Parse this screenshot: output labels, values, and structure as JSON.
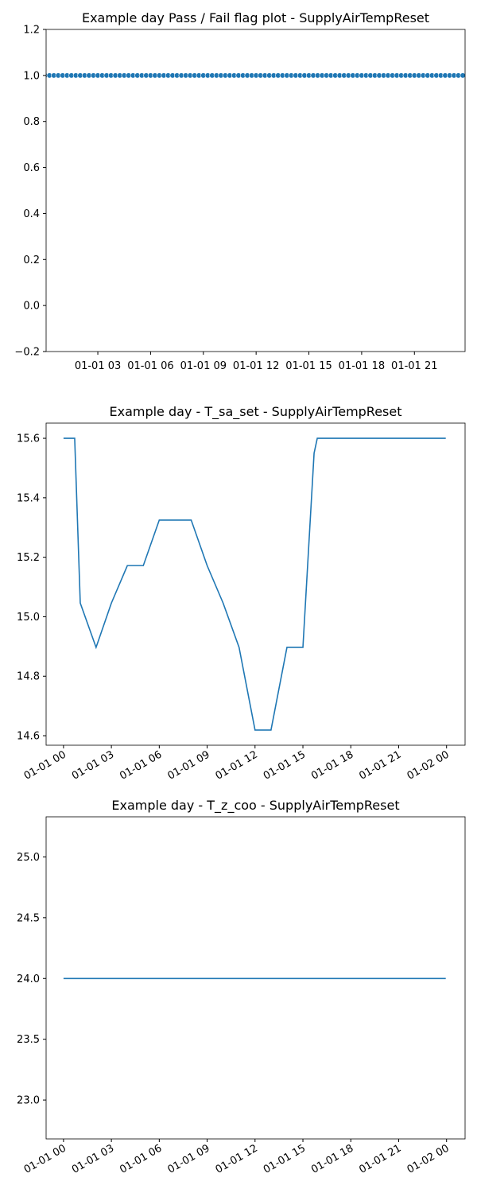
{
  "chart_data": [
    {
      "type": "scatter",
      "title": "Example day Pass / Fail flag plot - SupplyAirTempReset",
      "color": "#1f77b4",
      "x": [
        0,
        0.25,
        0.5,
        0.75,
        1,
        1.25,
        1.5,
        1.75,
        2,
        2.25,
        2.5,
        2.75,
        3,
        3.25,
        3.5,
        3.75,
        4,
        4.25,
        4.5,
        4.75,
        5,
        5.25,
        5.5,
        5.75,
        6,
        6.25,
        6.5,
        6.75,
        7,
        7.25,
        7.5,
        7.75,
        8,
        8.25,
        8.5,
        8.75,
        9,
        9.25,
        9.5,
        9.75,
        10,
        10.25,
        10.5,
        10.75,
        11,
        11.25,
        11.5,
        11.75,
        12,
        12.25,
        12.5,
        12.75,
        13,
        13.25,
        13.5,
        13.75,
        14,
        14.25,
        14.5,
        14.75,
        15,
        15.25,
        15.5,
        15.75,
        16,
        16.25,
        16.5,
        16.75,
        17,
        17.25,
        17.5,
        17.75,
        18,
        18.25,
        18.5,
        18.75,
        19,
        19.25,
        19.5,
        19.75,
        20,
        20.25,
        20.5,
        20.75,
        21,
        21.25,
        21.5,
        21.75,
        22,
        22.25,
        22.5,
        22.75,
        23,
        23.25,
        23.5,
        23.75
      ],
      "values": [
        1,
        1,
        1,
        1,
        1,
        1,
        1,
        1,
        1,
        1,
        1,
        1,
        1,
        1,
        1,
        1,
        1,
        1,
        1,
        1,
        1,
        1,
        1,
        1,
        1,
        1,
        1,
        1,
        1,
        1,
        1,
        1,
        1,
        1,
        1,
        1,
        1,
        1,
        1,
        1,
        1,
        1,
        1,
        1,
        1,
        1,
        1,
        1,
        1,
        1,
        1,
        1,
        1,
        1,
        1,
        1,
        1,
        1,
        1,
        1,
        1,
        1,
        1,
        1,
        1,
        1,
        1,
        1,
        1,
        1,
        1,
        1,
        1,
        1,
        1,
        1,
        1,
        1,
        1,
        1,
        1,
        1,
        1,
        1,
        1,
        1,
        1,
        1,
        1,
        1,
        1,
        1,
        1,
        1,
        1,
        1
      ],
      "xlim": [
        0.06,
        23.88
      ],
      "xticks": [
        {
          "value": 3,
          "label": "01-01 03"
        },
        {
          "value": 6,
          "label": "01-01 06"
        },
        {
          "value": 9,
          "label": "01-01 09"
        },
        {
          "value": 12,
          "label": "01-01 12"
        },
        {
          "value": 15,
          "label": "01-01 15"
        },
        {
          "value": 18,
          "label": "01-01 18"
        },
        {
          "value": 21,
          "label": "01-01 21"
        }
      ],
      "ylim": [
        -0.2,
        1.2
      ],
      "yticks": [
        {
          "value": -0.2,
          "label": "−0.2"
        },
        {
          "value": 0,
          "label": "0.0"
        },
        0.2,
        0.4,
        0.6,
        0.8,
        {
          "value": 1,
          "label": "1.0"
        },
        1.2
      ]
    },
    {
      "type": "line",
      "title": "Example day - T_sa_set - SupplyAirTempReset",
      "color": "#1f77b4",
      "x": [
        0,
        0.7,
        1.05,
        2.04,
        3,
        4,
        5,
        6,
        8,
        9,
        10,
        11,
        12,
        13,
        14,
        15,
        15.7,
        15.9,
        23.95
      ],
      "values": [
        15.6,
        15.6,
        15.046,
        14.897,
        15.046,
        15.172,
        15.172,
        15.325,
        15.325,
        15.172,
        15.046,
        14.897,
        14.619,
        14.619,
        14.897,
        14.897,
        15.55,
        15.6,
        15.6
      ],
      "xlim": [
        -1.09,
        25.16
      ],
      "xticks": [
        {
          "value": 0,
          "label": "01-01 00"
        },
        {
          "value": 3,
          "label": "01-01 03"
        },
        {
          "value": 6,
          "label": "01-01 06"
        },
        {
          "value": 9,
          "label": "01-01 09"
        },
        {
          "value": 12,
          "label": "01-01 12"
        },
        {
          "value": 15,
          "label": "01-01 15"
        },
        {
          "value": 18,
          "label": "01-01 18"
        },
        {
          "value": 21,
          "label": "01-01 21"
        },
        {
          "value": 24,
          "label": "01-02 00"
        }
      ],
      "ylim": [
        14.568,
        15.651
      ],
      "yticks": [
        14.6,
        14.8,
        {
          "value": 15,
          "label": "15.0"
        },
        15.2,
        15.4,
        15.6
      ]
    },
    {
      "type": "line",
      "title": "Example day - T_z_coo - SupplyAirTempReset",
      "color": "#1f77b4",
      "x": [
        0,
        23.95
      ],
      "values": [
        24,
        24
      ],
      "xlim": [
        -1.09,
        25.16
      ],
      "xticks": [
        {
          "value": 0,
          "label": "01-01 00"
        },
        {
          "value": 3,
          "label": "01-01 03"
        },
        {
          "value": 6,
          "label": "01-01 06"
        },
        {
          "value": 9,
          "label": "01-01 09"
        },
        {
          "value": 12,
          "label": "01-01 12"
        },
        {
          "value": 15,
          "label": "01-01 15"
        },
        {
          "value": 18,
          "label": "01-01 18"
        },
        {
          "value": 21,
          "label": "01-01 21"
        },
        {
          "value": 24,
          "label": "01-02 00"
        }
      ],
      "ylim": [
        22.68,
        25.33
      ],
      "yticks": [
        {
          "value": 23,
          "label": "23.0"
        },
        23.5,
        {
          "value": 24,
          "label": "24.0"
        },
        24.5,
        {
          "value": 25,
          "label": "25.0"
        }
      ]
    }
  ]
}
